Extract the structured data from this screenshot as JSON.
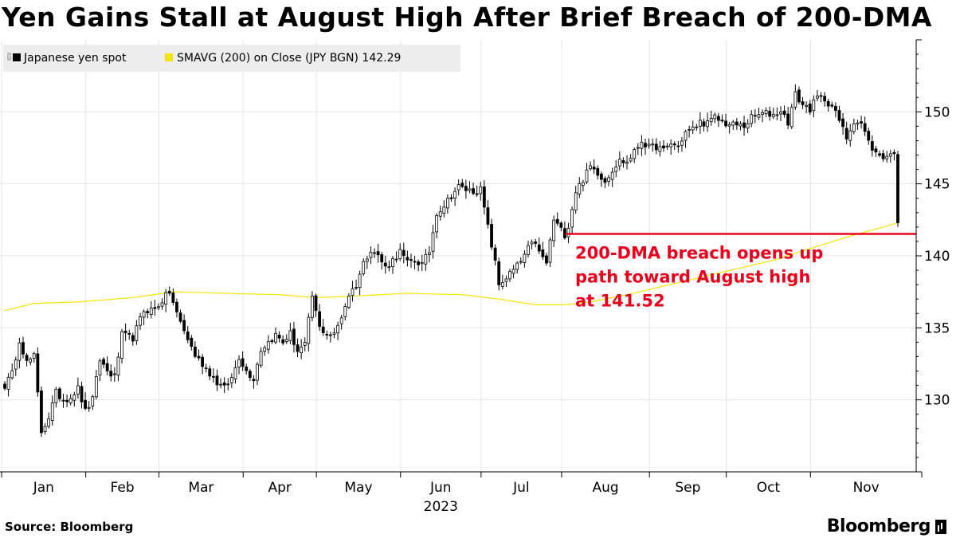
{
  "chart_data": {
    "type": "candlestick",
    "title": "Yen Gains Stall at August High After Brief Breach of 200-DMA",
    "legend": {
      "position": "top-left",
      "entries": [
        {
          "label": "Japanese yen spot",
          "color": "#000000"
        },
        {
          "label": "SMAVG (200)  on Close (JPY BGN) 142.29",
          "color": "#f2e600"
        }
      ]
    },
    "y_axis": {
      "position": "right",
      "ticks": [
        130,
        135,
        140,
        145,
        150
      ],
      "ylim": [
        125.0,
        155.0
      ]
    },
    "x_axis": {
      "months": [
        "Jan",
        "Feb",
        "Mar",
        "Apr",
        "May",
        "Jun",
        "Jul",
        "Aug",
        "Sep",
        "Oct",
        "Nov"
      ],
      "month_starts": [
        0,
        23,
        43,
        66,
        86,
        109,
        131,
        153,
        177,
        198,
        221
      ],
      "n_days": 245,
      "year_label": "2023",
      "year_at_month": "Jun"
    },
    "annotation": {
      "lines": [
        "200-DMA breach opens up",
        "path toward August high",
        "at 141.52"
      ],
      "level": 141.52,
      "from_day": 154,
      "color": "#e8001c"
    },
    "price_anchors": [
      [
        0,
        131.0
      ],
      [
        2,
        131.8
      ],
      [
        4,
        134.2
      ],
      [
        6,
        132.6
      ],
      [
        8,
        133.0
      ],
      [
        10,
        127.8
      ],
      [
        12,
        128.8
      ],
      [
        14,
        130.5
      ],
      [
        16,
        130.0
      ],
      [
        18,
        130.2
      ],
      [
        20,
        130.8
      ],
      [
        22,
        129.2
      ],
      [
        24,
        130.0
      ],
      [
        26,
        132.8
      ],
      [
        28,
        132.0
      ],
      [
        30,
        131.6
      ],
      [
        32,
        134.5
      ],
      [
        35,
        134.3
      ],
      [
        38,
        136.2
      ],
      [
        41,
        136.3
      ],
      [
        43,
        136.9
      ],
      [
        45,
        137.5
      ],
      [
        47,
        136.0
      ],
      [
        49,
        134.8
      ],
      [
        52,
        133.1
      ],
      [
        55,
        132.2
      ],
      [
        58,
        131.2
      ],
      [
        60,
        130.8
      ],
      [
        62,
        131.5
      ],
      [
        64,
        133.0
      ],
      [
        66,
        132.0
      ],
      [
        68,
        131.5
      ],
      [
        70,
        133.5
      ],
      [
        72,
        134.0
      ],
      [
        74,
        134.5
      ],
      [
        76,
        134.0
      ],
      [
        78,
        134.6
      ],
      [
        80,
        133.4
      ],
      [
        82,
        133.8
      ],
      [
        84,
        137.2
      ],
      [
        86,
        135.0
      ],
      [
        88,
        134.6
      ],
      [
        90,
        134.5
      ],
      [
        92,
        135.8
      ],
      [
        94,
        137.3
      ],
      [
        96,
        138.0
      ],
      [
        98,
        139.5
      ],
      [
        100,
        140.5
      ],
      [
        102,
        140.0
      ],
      [
        104,
        139.2
      ],
      [
        106,
        139.7
      ],
      [
        108,
        140.3
      ],
      [
        110,
        139.5
      ],
      [
        112,
        139.7
      ],
      [
        114,
        139.4
      ],
      [
        116,
        140.3
      ],
      [
        118,
        143.0
      ],
      [
        120,
        143.5
      ],
      [
        122,
        144.2
      ],
      [
        124,
        144.8
      ],
      [
        126,
        144.6
      ],
      [
        128,
        144.5
      ],
      [
        130,
        144.6
      ],
      [
        132,
        142.0
      ],
      [
        134,
        139.5
      ],
      [
        135,
        138.0
      ],
      [
        137,
        138.5
      ],
      [
        139,
        139.0
      ],
      [
        141,
        139.6
      ],
      [
        143,
        140.5
      ],
      [
        145,
        141.0
      ],
      [
        146,
        140.2
      ],
      [
        148,
        139.5
      ],
      [
        150,
        142.5
      ],
      [
        152,
        141.8
      ],
      [
        153,
        141.5
      ],
      [
        154,
        142.1
      ],
      [
        156,
        144.5
      ],
      [
        158,
        145.3
      ],
      [
        160,
        146.2
      ],
      [
        162,
        145.8
      ],
      [
        164,
        145.2
      ],
      [
        166,
        146.0
      ],
      [
        168,
        146.6
      ],
      [
        170,
        146.5
      ],
      [
        172,
        147.2
      ],
      [
        174,
        148.0
      ],
      [
        176,
        147.5
      ],
      [
        178,
        147.6
      ],
      [
        180,
        147.3
      ],
      [
        182,
        147.8
      ],
      [
        184,
        147.6
      ],
      [
        186,
        148.6
      ],
      [
        188,
        148.8
      ],
      [
        190,
        149.3
      ],
      [
        192,
        149.2
      ],
      [
        194,
        149.6
      ],
      [
        196,
        149.3
      ],
      [
        198,
        149.1
      ],
      [
        200,
        149.1
      ],
      [
        202,
        149.0
      ],
      [
        204,
        149.6
      ],
      [
        206,
        149.8
      ],
      [
        208,
        149.9
      ],
      [
        210,
        149.8
      ],
      [
        212,
        150.1
      ],
      [
        214,
        149.3
      ],
      [
        216,
        151.2
      ],
      [
        218,
        150.5
      ],
      [
        220,
        150.2
      ],
      [
        222,
        151.0
      ],
      [
        224,
        150.9
      ],
      [
        226,
        150.4
      ],
      [
        228,
        149.4
      ],
      [
        230,
        148.2
      ],
      [
        232,
        149.4
      ],
      [
        234,
        149.2
      ],
      [
        236,
        147.9
      ],
      [
        238,
        147.1
      ],
      [
        240,
        146.9
      ],
      [
        242,
        147.0
      ],
      [
        243,
        147.3
      ],
      [
        244,
        142.3
      ]
    ],
    "sma_anchors": [
      [
        0,
        136.2
      ],
      [
        8,
        136.7
      ],
      [
        20,
        136.8
      ],
      [
        35,
        137.1
      ],
      [
        46,
        137.5
      ],
      [
        60,
        137.4
      ],
      [
        75,
        137.3
      ],
      [
        85,
        137.1
      ],
      [
        95,
        137.2
      ],
      [
        110,
        137.4
      ],
      [
        125,
        137.3
      ],
      [
        135,
        137.0
      ],
      [
        145,
        136.6
      ],
      [
        153,
        136.6
      ],
      [
        160,
        136.8
      ],
      [
        170,
        137.3
      ],
      [
        180,
        137.9
      ],
      [
        190,
        138.5
      ],
      [
        200,
        139.1
      ],
      [
        210,
        139.7
      ],
      [
        220,
        140.5
      ],
      [
        230,
        141.3
      ],
      [
        240,
        142.0
      ],
      [
        244,
        142.29
      ]
    ]
  },
  "footer": {
    "source": "Source:  Bloomberg",
    "brand": "Bloomberg"
  }
}
